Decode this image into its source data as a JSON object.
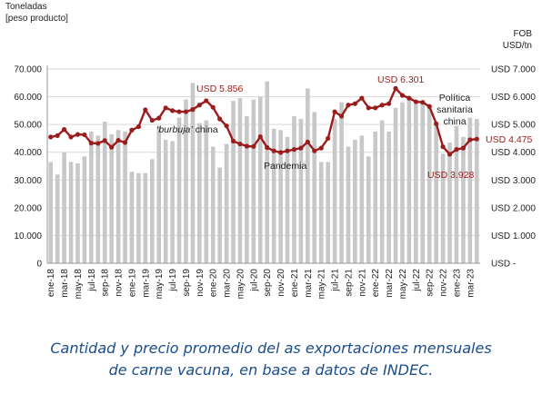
{
  "chart_data": {
    "type": "bar+line",
    "left_axis_label": [
      "Toneladas",
      "[peso producto]"
    ],
    "right_axis_label": [
      "FOB",
      "USD/tn"
    ],
    "left_ticks": [
      "0",
      "10.000",
      "20.000",
      "30.000",
      "40.000",
      "50.000",
      "60.000",
      "70.000"
    ],
    "right_ticks": [
      "USD -",
      "USD 1.000",
      "USD 2.000",
      "USD 3.000",
      "USD 4.000",
      "USD 5.000",
      "USD 6.000",
      "USD 7.000"
    ],
    "ylim_left": [
      0,
      70000
    ],
    "ylim_right": [
      0,
      7000
    ],
    "x_tick_labels": [
      "ene-18",
      "mar-18",
      "may-18",
      "jul-18",
      "sep-18",
      "nov-18",
      "ene-19",
      "mar-19",
      "may-19",
      "jul-19",
      "sep-19",
      "nov-19",
      "ene-20",
      "mar-20",
      "may-20",
      "jul-20",
      "sep-20",
      "nov-20",
      "ene-21",
      "mar-21",
      "may-21",
      "jul-21",
      "sep-21",
      "nov-21",
      "ene-22",
      "mar-22",
      "may-22",
      "jul-22",
      "sep-22",
      "nov-22",
      "ene-23",
      "mar-23"
    ],
    "grid": "horizontal",
    "series": [
      {
        "kind": "bar",
        "axis": "left",
        "color": "#c8c8c8",
        "values": [
          36500,
          32000,
          40000,
          36500,
          36000,
          38500,
          47500,
          46000,
          51000,
          46500,
          48000,
          47500,
          33000,
          32500,
          32500,
          37500,
          49500,
          44500,
          44000,
          52500,
          59000,
          65000,
          50500,
          51500,
          42000,
          34500,
          43000,
          58500,
          59500,
          53000,
          59000,
          60000,
          65500,
          48500,
          48000,
          45500,
          53000,
          52000,
          63000,
          54500,
          36500,
          36500,
          52000,
          58000,
          42000,
          44500,
          46000,
          38500,
          47500,
          51500,
          47500,
          56000,
          58000,
          59500,
          57500,
          57500,
          56000,
          50000,
          39500,
          43500,
          49500,
          45500,
          52500,
          52000
        ]
      },
      {
        "kind": "line",
        "axis": "right",
        "color": "#9b1c1c",
        "values": [
          4550,
          4600,
          4820,
          4550,
          4640,
          4630,
          4330,
          4320,
          4420,
          4180,
          4430,
          4350,
          4800,
          4920,
          5530,
          5150,
          5230,
          5600,
          5500,
          5460,
          5460,
          5540,
          5700,
          5856,
          5620,
          5200,
          4950,
          4400,
          4300,
          4220,
          4210,
          4560,
          4170,
          4050,
          3990,
          4050,
          4100,
          4150,
          4370,
          4050,
          4150,
          4500,
          5460,
          5300,
          5700,
          5750,
          5950,
          5600,
          5600,
          5700,
          5750,
          6301,
          6050,
          5950,
          5820,
          5800,
          5650,
          5030,
          4200,
          3928,
          4100,
          4150,
          4450,
          4475
        ]
      }
    ],
    "annotations": [
      {
        "text": "USD 5.856",
        "color": "#9b1c1c"
      },
      {
        "text": "USD 6.301",
        "color": "#9b1c1c"
      },
      {
        "text": "USD 3.928",
        "color": "#9b1c1c"
      },
      {
        "text": "USD 4.475",
        "color": "#9b1c1c"
      },
      {
        "text_parts": [
          "‘burbuja’",
          " china"
        ],
        "color": "#222222"
      },
      {
        "text": "Pandemia",
        "color": "#222222"
      },
      {
        "text_lines": [
          "Política",
          "sanitaria",
          "china"
        ],
        "color": "#222222"
      }
    ]
  },
  "caption": {
    "line1": "Cantidad y precio promedio del as exportaciones mensuales",
    "line2": "de carne vacuna, en base a datos de INDEC."
  }
}
